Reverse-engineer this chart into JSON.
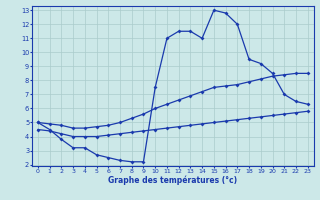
{
  "hours": [
    0,
    1,
    2,
    3,
    4,
    5,
    6,
    7,
    8,
    9,
    10,
    11,
    12,
    13,
    14,
    15,
    16,
    17,
    18,
    19,
    20,
    21,
    22,
    23
  ],
  "temp_actual": [
    5.0,
    4.5,
    3.8,
    3.2,
    3.2,
    2.7,
    2.5,
    2.3,
    2.2,
    2.2,
    7.5,
    11.0,
    11.5,
    11.5,
    11.0,
    13.0,
    12.8,
    12.0,
    9.5,
    9.2,
    8.5,
    7.0,
    6.5,
    6.3
  ],
  "temp_max": [
    5.0,
    4.9,
    4.8,
    4.6,
    4.6,
    4.7,
    4.8,
    5.0,
    5.3,
    5.6,
    6.0,
    6.3,
    6.6,
    6.9,
    7.2,
    7.5,
    7.6,
    7.7,
    7.9,
    8.1,
    8.3,
    8.4,
    8.5,
    8.5
  ],
  "temp_min": [
    4.5,
    4.4,
    4.2,
    4.0,
    4.0,
    4.0,
    4.1,
    4.2,
    4.3,
    4.4,
    4.5,
    4.6,
    4.7,
    4.8,
    4.9,
    5.0,
    5.1,
    5.2,
    5.3,
    5.4,
    5.5,
    5.6,
    5.7,
    5.8
  ],
  "line_color": "#1a3aad",
  "bg_color": "#cce8e8",
  "grid_color": "#aacccc",
  "xlabel": "Graphe des températures (°c)",
  "ylim": [
    2,
    13
  ],
  "yticks": [
    2,
    3,
    4,
    5,
    6,
    7,
    8,
    9,
    10,
    11,
    12,
    13
  ],
  "xticks": [
    0,
    1,
    2,
    3,
    4,
    5,
    6,
    7,
    8,
    9,
    10,
    11,
    12,
    13,
    14,
    15,
    16,
    17,
    18,
    19,
    20,
    21,
    22,
    23
  ]
}
